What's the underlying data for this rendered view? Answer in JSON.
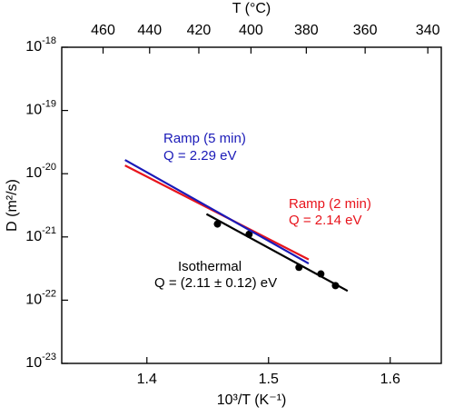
{
  "chart_data": {
    "type": "scatter",
    "xlabel": "10³/T (K⁻¹)",
    "x2label": "T (°C)",
    "ylabel": "D (m²/s)",
    "xlim": [
      1.33,
      1.642
    ],
    "xticks": [
      1.4,
      1.5,
      1.6
    ],
    "x2ticks": [
      460,
      440,
      420,
      400,
      380,
      360,
      340
    ],
    "log_y": true,
    "ylim": [
      1e-23,
      1e-18
    ],
    "yticks": [
      {
        "value": 1e-18,
        "label": "10",
        "exponent": "-18"
      },
      {
        "value": 1e-19,
        "label": "10",
        "exponent": "-19"
      },
      {
        "value": 1e-20,
        "label": "10",
        "exponent": "-20"
      },
      {
        "value": 1e-21,
        "label": "10",
        "exponent": "-21"
      },
      {
        "value": 1e-22,
        "label": "10",
        "exponent": "-22"
      },
      {
        "value": 1e-23,
        "label": "10",
        "exponent": "-23"
      }
    ],
    "series": [
      {
        "kind": "points",
        "color": "#000000",
        "x": [
          1.458,
          1.484,
          1.525,
          1.543,
          1.555
        ],
        "values": [
          1.6e-21,
          1.1e-21,
          3.3e-22,
          2.6e-22,
          1.7e-22
        ]
      },
      {
        "kind": "line",
        "color": "#000000",
        "x": [
          1.449,
          1.565
        ],
        "values": [
          2.3e-21,
          1.4e-22
        ]
      },
      {
        "kind": "line",
        "color": "#e8141c",
        "x": [
          1.382,
          1.533
        ],
        "values": [
          1.35e-20,
          4.4e-22
        ]
      },
      {
        "kind": "line",
        "color": "#1a1ab8",
        "x": [
          1.382,
          1.533
        ],
        "values": [
          1.65e-20,
          3.8e-22
        ]
      }
    ],
    "annotations": [
      {
        "text": "Ramp (5 min)",
        "color": "#1a1ab8"
      },
      {
        "text": "Q = 2.29 eV",
        "color": "#1a1ab8"
      },
      {
        "text": "Ramp (2 min)",
        "color": "#e8141c"
      },
      {
        "text": "Q = 2.14 eV",
        "color": "#e8141c"
      },
      {
        "text": "Isothermal",
        "color": "#000000"
      },
      {
        "text": "Q = (2.11 ± 0.12) eV",
        "color": "#000000"
      }
    ]
  }
}
